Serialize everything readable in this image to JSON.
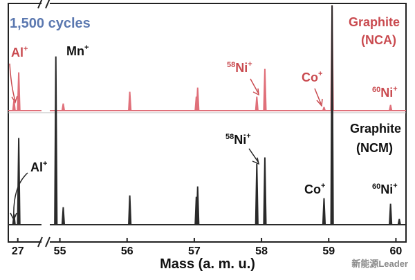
{
  "chart_data": {
    "type": "spectrum",
    "title": "1,500 cycles",
    "xlabel": "Mass (a. m. u.)",
    "ylim": [
      0,
      320
    ],
    "x_panels": [
      {
        "xlim": [
          26.9,
          27.25
        ],
        "xticks": [
          27
        ]
      },
      {
        "xlim": [
          54.85,
          60.15
        ],
        "xticks": [
          55,
          56,
          57,
          58,
          59,
          60
        ]
      }
    ],
    "series": [
      {
        "name": "Graphite",
        "sample": "(NCA)",
        "color": "#e0707a",
        "x": [
          26.96,
          27.01,
          55.05,
          56.04,
          57.03,
          57.05,
          57.93,
          58.05,
          58.93,
          59.05,
          59.92
        ],
        "values": [
          15,
          55,
          10,
          27,
          20,
          33,
          20,
          60,
          5,
          152,
          8
        ]
      },
      {
        "name": "Graphite",
        "sample": "(NCM)",
        "color": "#2a2a2a",
        "x": [
          26.96,
          27.01,
          54.94,
          55.05,
          56.04,
          57.03,
          57.05,
          57.93,
          58.05,
          58.93,
          59.05,
          59.92,
          60.05
        ],
        "values": [
          15,
          125,
          243,
          25,
          42,
          40,
          55,
          88,
          97,
          38,
          317,
          30,
          8
        ]
      }
    ],
    "annotations": [
      {
        "text": "Al",
        "sup": "+"
      },
      {
        "text": "Mn",
        "sup": "+"
      },
      {
        "pre": "58",
        "text": "Ni",
        "sup": "+"
      },
      {
        "text": "Co",
        "sup": "+"
      },
      {
        "pre": "60",
        "text": "Ni",
        "sup": "+"
      },
      {
        "text": "Al",
        "sup": "+"
      },
      {
        "pre": "58",
        "text": "Ni",
        "sup": "+"
      },
      {
        "text": "Co",
        "sup": "+"
      },
      {
        "pre": "60",
        "text": "Ni",
        "sup": "+"
      }
    ],
    "watermark": "新能源Leader"
  }
}
